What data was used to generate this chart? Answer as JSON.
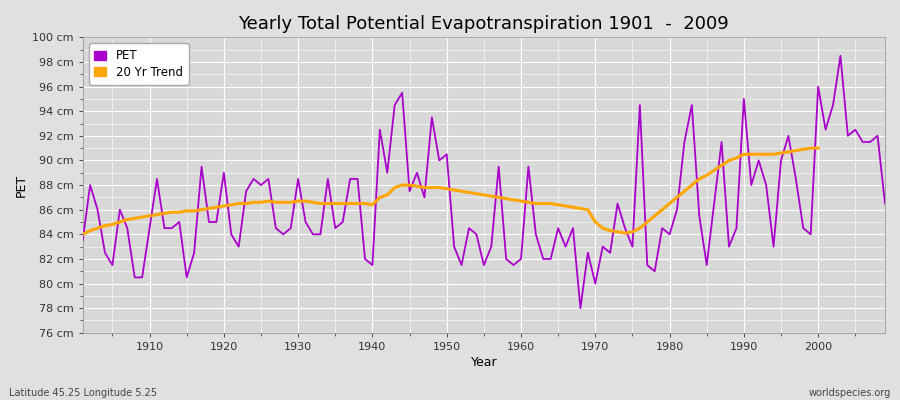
{
  "title": "Yearly Total Potential Evapotranspiration 1901  -  2009",
  "xlabel": "Year",
  "ylabel": "PET",
  "bottom_left": "Latitude 45.25 Longitude 5.25",
  "bottom_right": "worldspecies.org",
  "ylim": [
    76,
    100
  ],
  "ytick_step": 2,
  "xlim": [
    1901,
    2009
  ],
  "years": [
    1901,
    1902,
    1903,
    1904,
    1905,
    1906,
    1907,
    1908,
    1909,
    1910,
    1911,
    1912,
    1913,
    1914,
    1915,
    1916,
    1917,
    1918,
    1919,
    1920,
    1921,
    1922,
    1923,
    1924,
    1925,
    1926,
    1927,
    1928,
    1929,
    1930,
    1931,
    1932,
    1933,
    1934,
    1935,
    1936,
    1937,
    1938,
    1939,
    1940,
    1941,
    1942,
    1943,
    1944,
    1945,
    1946,
    1947,
    1948,
    1949,
    1950,
    1951,
    1952,
    1953,
    1954,
    1955,
    1956,
    1957,
    1958,
    1959,
    1960,
    1961,
    1962,
    1963,
    1964,
    1965,
    1966,
    1967,
    1968,
    1969,
    1970,
    1971,
    1972,
    1973,
    1974,
    1975,
    1976,
    1977,
    1978,
    1979,
    1980,
    1981,
    1982,
    1983,
    1984,
    1985,
    1986,
    1987,
    1988,
    1989,
    1990,
    1991,
    1992,
    1993,
    1994,
    1995,
    1996,
    1997,
    1998,
    1999,
    2000,
    2001,
    2002,
    2003,
    2004,
    2005,
    2006,
    2007,
    2008,
    2009
  ],
  "pet": [
    83.5,
    88.0,
    86.0,
    82.5,
    81.5,
    86.0,
    84.5,
    80.5,
    80.5,
    84.5,
    88.5,
    84.5,
    84.5,
    85.0,
    80.5,
    82.5,
    89.5,
    85.0,
    85.0,
    89.0,
    84.0,
    83.0,
    87.5,
    88.5,
    88.0,
    88.5,
    84.5,
    84.0,
    84.5,
    88.5,
    85.0,
    84.0,
    84.0,
    88.5,
    84.5,
    85.0,
    88.5,
    88.5,
    82.0,
    81.5,
    92.5,
    89.0,
    94.5,
    95.5,
    87.5,
    89.0,
    87.0,
    93.5,
    90.0,
    90.5,
    83.0,
    81.5,
    84.5,
    84.0,
    81.5,
    83.0,
    89.5,
    82.0,
    81.5,
    82.0,
    89.5,
    84.0,
    82.0,
    82.0,
    84.5,
    83.0,
    84.5,
    78.0,
    82.5,
    80.0,
    83.0,
    82.5,
    86.5,
    84.5,
    83.0,
    94.5,
    81.5,
    81.0,
    84.5,
    84.0,
    86.0,
    91.5,
    94.5,
    85.5,
    81.5,
    86.5,
    91.5,
    83.0,
    84.5,
    95.0,
    88.0,
    90.0,
    88.0,
    83.0,
    90.0,
    92.0,
    88.5,
    84.5,
    84.0,
    96.0,
    92.5,
    94.5,
    98.5,
    92.0,
    92.5,
    91.5,
    91.5,
    92.0,
    86.5
  ],
  "trend": [
    84.0,
    84.3,
    84.5,
    84.7,
    84.8,
    85.0,
    85.2,
    85.3,
    85.4,
    85.5,
    85.6,
    85.7,
    85.8,
    85.8,
    85.9,
    85.9,
    86.0,
    86.1,
    86.2,
    86.3,
    86.4,
    86.5,
    86.5,
    86.6,
    86.6,
    86.7,
    86.6,
    86.6,
    86.6,
    86.7,
    86.7,
    86.6,
    86.5,
    86.5,
    86.5,
    86.5,
    86.5,
    86.5,
    86.5,
    86.4,
    87.0,
    87.2,
    87.8,
    88.0,
    88.0,
    87.9,
    87.8,
    87.8,
    87.8,
    87.7,
    87.6,
    87.5,
    87.4,
    87.3,
    87.2,
    87.1,
    87.0,
    86.9,
    86.8,
    86.7,
    86.6,
    86.5,
    86.5,
    86.5,
    86.4,
    86.3,
    86.2,
    86.1,
    86.0,
    85.0,
    84.5,
    84.3,
    84.2,
    84.1,
    84.2,
    84.5,
    85.0,
    85.5,
    86.0,
    86.5,
    87.0,
    87.5,
    88.0,
    88.5,
    88.8,
    89.2,
    89.6,
    90.0,
    90.2,
    90.5,
    90.5,
    90.5,
    90.5,
    90.5,
    90.6,
    90.7,
    90.8,
    90.9,
    91.0,
    91.0,
    null,
    null,
    null,
    null,
    null,
    null,
    null,
    null,
    null
  ],
  "pet_color": "#AA00CC",
  "trend_color": "#FFA500",
  "bg_color": "#E0E0E0",
  "plot_bg_color": "#D8D8D8",
  "grid_color": "#FFFFFF",
  "title_fontsize": 13,
  "axis_label_fontsize": 9,
  "tick_fontsize": 8
}
